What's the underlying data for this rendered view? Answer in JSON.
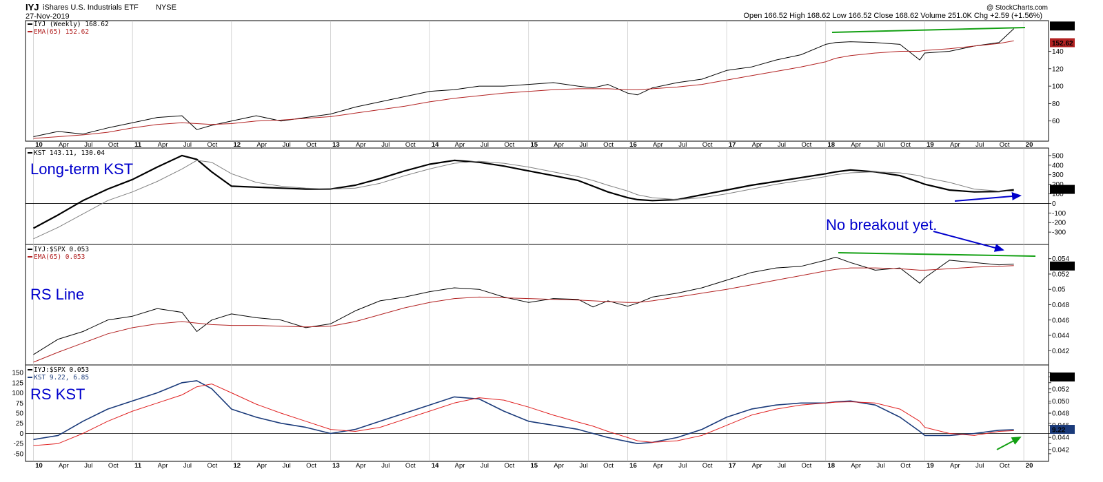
{
  "header": {
    "symbol": "IYJ",
    "name": "iShares U.S. Industrials ETF",
    "exchange": "NYSE",
    "date": "27-Nov-2019",
    "quote": "Open 166.52  High 168.62  Low 166.52  Close 168.62  Volume 251.0K  Chg +2.59 (+1.56%)",
    "credit": "@ StockCharts.com"
  },
  "colors": {
    "price": "#000000",
    "ema": "#b22222",
    "kst_signal": "#808080",
    "rs_kst": "#1a3a7a",
    "rs_signal": "#e02020",
    "trend": "#13a013",
    "annotation": "#0000cc"
  },
  "annotations": {
    "kst_label": "Long-term KST",
    "rs_line_label": "RS Line",
    "rs_kst_label": "RS KST",
    "no_breakout": "No breakout yet."
  },
  "x_axis_labels": [
    "10",
    "Apr",
    "Jul",
    "Oct",
    "11",
    "Apr",
    "Jul",
    "Oct",
    "12",
    "Apr",
    "Jul",
    "Oct",
    "13",
    "Apr",
    "Jul",
    "Oct",
    "14",
    "Apr",
    "Jul",
    "Oct",
    "15",
    "Apr",
    "Jul",
    "Oct",
    "16",
    "Apr",
    "Jul",
    "Oct",
    "17",
    "Apr",
    "Jul",
    "Oct",
    "18",
    "Apr",
    "Jul",
    "Oct",
    "19",
    "Apr",
    "Jul",
    "Oct",
    "20"
  ],
  "chart_data": [
    {
      "type": "line",
      "legend": [
        "IYJ (Weekly) 168.62",
        "EMA(65) 152.62"
      ],
      "price_tag": "168.62",
      "ema_tag": "152.62",
      "y_ticks": [
        60,
        80,
        100,
        120,
        140
      ],
      "ylim": [
        40,
        172
      ],
      "x": [
        2010.0,
        2010.25,
        2010.5,
        2010.75,
        2011.0,
        2011.25,
        2011.5,
        2011.65,
        2011.8,
        2012.0,
        2012.25,
        2012.5,
        2012.75,
        2013.0,
        2013.25,
        2013.5,
        2013.75,
        2014.0,
        2014.25,
        2014.5,
        2014.75,
        2015.0,
        2015.25,
        2015.5,
        2015.65,
        2015.8,
        2016.0,
        2016.1,
        2016.25,
        2016.5,
        2016.75,
        2017.0,
        2017.25,
        2017.5,
        2017.75,
        2018.0,
        2018.1,
        2018.25,
        2018.5,
        2018.75,
        2018.95,
        2019.0,
        2019.25,
        2019.5,
        2019.75,
        2019.9
      ],
      "series": [
        {
          "name": "IYJ (Weekly)",
          "values": [
            42,
            48,
            45,
            52,
            58,
            64,
            66,
            50,
            55,
            60,
            66,
            60,
            64,
            68,
            76,
            82,
            88,
            94,
            96,
            100,
            100,
            102,
            104,
            100,
            98,
            102,
            92,
            90,
            98,
            104,
            108,
            118,
            122,
            130,
            136,
            148,
            150,
            151,
            150,
            148,
            130,
            138,
            140,
            146,
            150,
            166
          ]
        },
        {
          "name": "EMA(65)",
          "values": [
            40,
            42,
            44,
            47,
            52,
            56,
            58,
            57,
            56,
            57,
            60,
            61,
            63,
            65,
            69,
            73,
            77,
            82,
            86,
            89,
            92,
            94,
            96,
            97,
            97,
            97,
            96,
            96,
            97,
            99,
            102,
            107,
            112,
            117,
            122,
            128,
            132,
            135,
            138,
            140,
            140,
            141,
            143,
            146,
            149,
            152
          ]
        }
      ]
    },
    {
      "type": "line",
      "legend": [
        "KST 143.11, 130.04"
      ],
      "value_tag": "143.11",
      "y_ticks": [
        -300,
        -200,
        -100,
        0,
        100,
        200,
        300,
        400,
        500
      ],
      "ylim": [
        -400,
        550
      ],
      "x": [
        2010.0,
        2010.25,
        2010.5,
        2010.75,
        2011.0,
        2011.25,
        2011.5,
        2011.65,
        2011.8,
        2012.0,
        2012.25,
        2012.5,
        2012.75,
        2013.0,
        2013.25,
        2013.5,
        2013.75,
        2014.0,
        2014.25,
        2014.5,
        2014.75,
        2015.0,
        2015.25,
        2015.5,
        2015.65,
        2015.8,
        2016.0,
        2016.1,
        2016.25,
        2016.5,
        2016.75,
        2017.0,
        2017.25,
        2017.5,
        2017.75,
        2018.0,
        2018.1,
        2018.25,
        2018.5,
        2018.75,
        2018.95,
        2019.0,
        2019.25,
        2019.5,
        2019.75,
        2019.9
      ],
      "series": [
        {
          "name": "KST",
          "values": [
            -260,
            -120,
            30,
            150,
            250,
            380,
            500,
            460,
            330,
            180,
            170,
            160,
            150,
            150,
            190,
            260,
            340,
            410,
            450,
            430,
            390,
            340,
            290,
            240,
            180,
            120,
            60,
            40,
            30,
            40,
            90,
            140,
            190,
            230,
            270,
            310,
            330,
            350,
            330,
            290,
            220,
            200,
            140,
            120,
            125,
            143
          ]
        },
        {
          "name": "Signal",
          "values": [
            -370,
            -250,
            -110,
            30,
            120,
            230,
            360,
            450,
            430,
            310,
            220,
            180,
            160,
            150,
            160,
            210,
            290,
            360,
            420,
            440,
            420,
            380,
            330,
            280,
            240,
            190,
            130,
            90,
            60,
            40,
            60,
            100,
            150,
            200,
            240,
            280,
            300,
            320,
            330,
            320,
            290,
            270,
            220,
            150,
            128,
            130
          ]
        }
      ]
    },
    {
      "type": "line",
      "legend": [
        "IYJ:$SPX 0.053",
        "EMA(65) 0.053"
      ],
      "price_tag": "0.053",
      "ema_tag": "0.053",
      "y_ticks": [
        0.042,
        0.044,
        0.046,
        0.048,
        0.05,
        0.052,
        0.054
      ],
      "ylim": [
        0.0405,
        0.0555
      ],
      "x": [
        2010.0,
        2010.25,
        2010.5,
        2010.75,
        2011.0,
        2011.25,
        2011.5,
        2011.65,
        2011.8,
        2012.0,
        2012.25,
        2012.5,
        2012.75,
        2013.0,
        2013.25,
        2013.5,
        2013.75,
        2014.0,
        2014.25,
        2014.5,
        2014.75,
        2015.0,
        2015.25,
        2015.5,
        2015.65,
        2015.8,
        2016.0,
        2016.1,
        2016.25,
        2016.5,
        2016.75,
        2017.0,
        2017.25,
        2017.5,
        2017.75,
        2018.0,
        2018.1,
        2018.25,
        2018.5,
        2018.75,
        2018.95,
        2019.0,
        2019.25,
        2019.5,
        2019.75,
        2019.9
      ],
      "series": [
        {
          "name": "IYJ:$SPX",
          "values": [
            0.0415,
            0.0435,
            0.0445,
            0.046,
            0.0465,
            0.0475,
            0.047,
            0.0445,
            0.046,
            0.0468,
            0.0463,
            0.046,
            0.045,
            0.0455,
            0.0472,
            0.0485,
            0.049,
            0.0497,
            0.0502,
            0.05,
            0.049,
            0.0483,
            0.0488,
            0.0487,
            0.0477,
            0.0485,
            0.0478,
            0.0482,
            0.049,
            0.0495,
            0.0502,
            0.0512,
            0.0522,
            0.0528,
            0.053,
            0.0538,
            0.0542,
            0.0535,
            0.0525,
            0.0528,
            0.0508,
            0.0515,
            0.0538,
            0.0535,
            0.0532,
            0.0533
          ]
        },
        {
          "name": "EMA(65)",
          "values": [
            0.0405,
            0.0418,
            0.043,
            0.0442,
            0.045,
            0.0455,
            0.0458,
            0.0456,
            0.0454,
            0.0453,
            0.0453,
            0.0452,
            0.0451,
            0.0452,
            0.0458,
            0.0467,
            0.0476,
            0.0483,
            0.0488,
            0.049,
            0.0489,
            0.0488,
            0.0487,
            0.0486,
            0.0485,
            0.0484,
            0.0483,
            0.0483,
            0.0485,
            0.049,
            0.0495,
            0.05,
            0.0506,
            0.0512,
            0.0518,
            0.0524,
            0.0526,
            0.0528,
            0.0528,
            0.0527,
            0.0525,
            0.0525,
            0.0527,
            0.0529,
            0.053,
            0.0531
          ]
        }
      ]
    },
    {
      "type": "line",
      "legend": [
        "IYJ:$SPX 0.053",
        "KST 9.22, 6.85"
      ],
      "value_tag": "9.22",
      "price_tag": "0.053",
      "y_ticks": [
        -50,
        -25,
        0,
        25,
        50,
        75,
        100,
        125,
        150
      ],
      "y_ticks_right": [
        0.042,
        0.044,
        0.046,
        0.048,
        0.05,
        0.052,
        0.054
      ],
      "ylim": [
        -62,
        162
      ],
      "x": [
        2010.0,
        2010.25,
        2010.5,
        2010.75,
        2011.0,
        2011.25,
        2011.5,
        2011.65,
        2011.8,
        2012.0,
        2012.25,
        2012.5,
        2012.75,
        2013.0,
        2013.25,
        2013.5,
        2013.75,
        2014.0,
        2014.25,
        2014.5,
        2014.75,
        2015.0,
        2015.25,
        2015.5,
        2015.65,
        2015.8,
        2016.0,
        2016.1,
        2016.25,
        2016.5,
        2016.75,
        2017.0,
        2017.25,
        2017.5,
        2017.75,
        2018.0,
        2018.1,
        2018.25,
        2018.5,
        2018.75,
        2018.95,
        2019.0,
        2019.25,
        2019.5,
        2019.75,
        2019.9
      ],
      "series": [
        {
          "name": "KST",
          "values": [
            -15,
            -5,
            30,
            60,
            80,
            100,
            125,
            130,
            110,
            60,
            40,
            25,
            15,
            0,
            10,
            30,
            50,
            70,
            90,
            85,
            55,
            30,
            20,
            10,
            0,
            -10,
            -20,
            -25,
            -22,
            -10,
            10,
            40,
            60,
            70,
            75,
            75,
            78,
            80,
            70,
            40,
            5,
            -5,
            -5,
            0,
            8,
            9.22
          ]
        },
        {
          "name": "Signal",
          "values": [
            -30,
            -25,
            0,
            30,
            55,
            75,
            95,
            115,
            122,
            100,
            72,
            50,
            30,
            10,
            5,
            15,
            35,
            55,
            75,
            88,
            82,
            65,
            45,
            28,
            18,
            5,
            -10,
            -18,
            -22,
            -18,
            -5,
            20,
            45,
            60,
            70,
            75,
            77,
            78,
            75,
            60,
            30,
            15,
            0,
            -5,
            5,
            6.85
          ]
        }
      ]
    }
  ]
}
